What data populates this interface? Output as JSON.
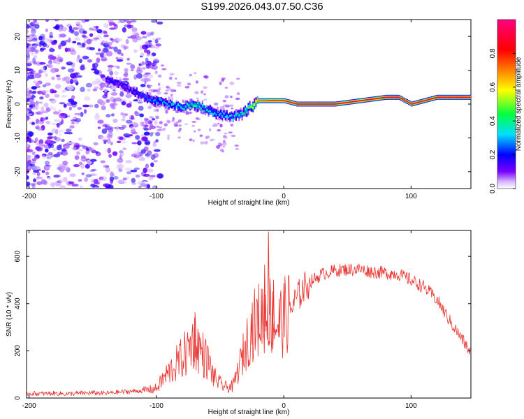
{
  "title": "S199.2026.043.07.50.C36",
  "colors": {
    "snr_line": "#e8322e",
    "axis": "#000000",
    "background": "#ffffff"
  },
  "chart_data": [
    {
      "type": "heatmap",
      "title": "S199.2026.043.07.50.C36",
      "xlabel": "Height of straight line (km)",
      "ylabel": "Frequency (Hz)",
      "xlim": [
        -202,
        147
      ],
      "ylim": [
        -25,
        25
      ],
      "xticks": [
        "-200",
        "-100",
        "0",
        "100"
      ],
      "yticks": [
        "-20",
        "-10",
        "0",
        "10",
        "20"
      ],
      "colorbar": {
        "label": "Normalized spectral amplitude",
        "range": [
          0,
          1
        ],
        "ticks": [
          "0.0",
          "0.2",
          "0.4",
          "0.6",
          "0.8"
        ],
        "colormap": [
          "#ffffff",
          "#7a00ff",
          "#0000ff",
          "#00e0ff",
          "#00ff40",
          "#ffff00",
          "#ff8000",
          "#ff0000",
          "#ff0080"
        ]
      },
      "ridge": {
        "x": [
          -140,
          -130,
          -120,
          -110,
          -100,
          -90,
          -80,
          -70,
          -60,
          -50,
          -40,
          -30,
          -20,
          -10,
          0,
          10,
          20,
          40,
          60,
          80,
          90,
          100,
          120,
          140,
          147
        ],
        "frequency": [
          7,
          6,
          4,
          2,
          1,
          0,
          -1,
          0,
          -2,
          -3,
          -4,
          -2,
          1,
          1,
          1,
          0,
          0,
          0,
          1,
          2,
          2,
          0,
          2,
          2,
          2
        ],
        "amplitude": [
          0.2,
          0.2,
          0.2,
          0.25,
          0.3,
          0.3,
          0.35,
          0.4,
          0.35,
          0.3,
          0.35,
          0.4,
          0.7,
          0.8,
          0.8,
          0.9,
          0.9,
          0.9,
          0.85,
          0.9,
          0.95,
          0.9,
          0.9,
          0.9,
          0.85
        ]
      }
    },
    {
      "type": "line",
      "xlabel": "Height of straight line (km)",
      "ylabel": "SNR (10 * v/v)",
      "xlim": [
        -202,
        147
      ],
      "ylim": [
        0,
        710
      ],
      "xticks": [
        "-200",
        "-100",
        "0",
        "100"
      ],
      "yticks": [
        "0",
        "200",
        "400",
        "600"
      ],
      "series": [
        {
          "name": "SNR",
          "x": [
            -202,
            -190,
            -180,
            -170,
            -160,
            -150,
            -140,
            -130,
            -120,
            -110,
            -100,
            -95,
            -90,
            -85,
            -80,
            -75,
            -70,
            -68,
            -65,
            -60,
            -55,
            -50,
            -45,
            -40,
            -35,
            -30,
            -25,
            -20,
            -15,
            -12,
            -10,
            -5,
            0,
            5,
            10,
            15,
            20,
            30,
            40,
            50,
            60,
            70,
            80,
            90,
            100,
            110,
            120,
            130,
            140,
            147
          ],
          "y": [
            20,
            18,
            20,
            17,
            20,
            22,
            20,
            25,
            28,
            32,
            40,
            80,
            110,
            140,
            170,
            200,
            260,
            230,
            200,
            160,
            90,
            60,
            45,
            50,
            130,
            220,
            300,
            330,
            360,
            380,
            340,
            310,
            340,
            370,
            420,
            460,
            490,
            525,
            540,
            545,
            545,
            535,
            530,
            525,
            500,
            470,
            420,
            330,
            250,
            190
          ],
          "spikes": [
            {
              "x": -70,
              "y": 340
            },
            {
              "x": -12,
              "y": 705
            },
            {
              "x": -15,
              "y": 565
            },
            {
              "x": -8,
              "y": 500
            }
          ]
        }
      ]
    }
  ]
}
